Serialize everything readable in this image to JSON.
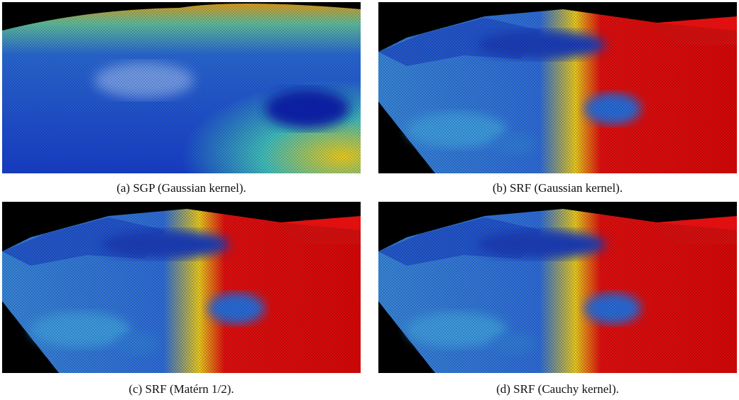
{
  "figure": {
    "panels": [
      {
        "caption": "(a) SGP (Gaussian kernel)."
      },
      {
        "caption": "(b) SRF (Gaussian kernel)."
      },
      {
        "caption": "(c) SRF (Matérn 1/2)."
      },
      {
        "caption": "(d) SRF (Cauchy kernel)."
      }
    ]
  }
}
